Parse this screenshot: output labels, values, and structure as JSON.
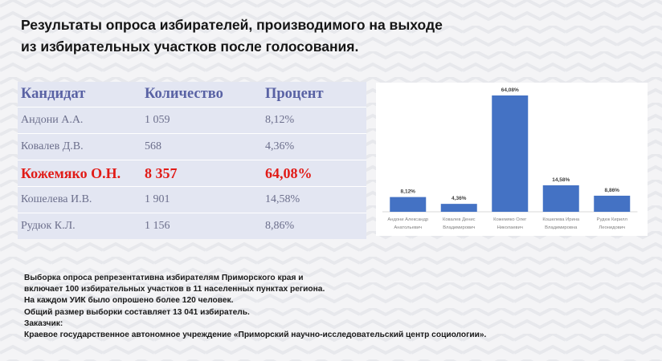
{
  "title_line1": "Результаты опроса избирателей, производимого на выходе",
  "title_line2": "из избирательных участков после голосования.",
  "table": {
    "headers": [
      "Кандидат",
      "Количество",
      "Процент"
    ],
    "rows": [
      {
        "name": "Андони А.А.",
        "count": "1 059",
        "percent": "8,12%"
      },
      {
        "name": "Ковалев Д.В.",
        "count": "568",
        "percent": "4,36%"
      },
      {
        "name": "Кожемяко О.Н.",
        "count": "8 357",
        "percent": "64,08%"
      },
      {
        "name": "Кошелева И.В.",
        "count": "1 901",
        "percent": "14,58%"
      },
      {
        "name": "Рудюк К.Л.",
        "count": "1 156",
        "percent": "8,86%"
      }
    ]
  },
  "chart_data": {
    "type": "bar",
    "categories": [
      [
        "Андони Александр",
        "Анатольевич"
      ],
      [
        "Ковалев Денис",
        "Владимирович"
      ],
      [
        "Кожемяко Олег",
        "Николаевич"
      ],
      [
        "Кошелева Ирина",
        "Владимировна"
      ],
      [
        "Рудюк Кирилл",
        "Леонидович"
      ]
    ],
    "values": [
      8.12,
      4.36,
      64.08,
      14.58,
      8.86
    ],
    "data_labels": [
      "8,12%",
      "4,36%",
      "64,08%",
      "14,58%",
      "8,86%"
    ],
    "ylim": [
      0,
      70
    ],
    "grid": false,
    "bar_color": "#4472c4"
  },
  "colors": {
    "highlight": "#e11b17",
    "header": "#5962a4"
  },
  "footer": [
    "Выборка опроса репрезентативна избирателям Приморского края и",
    "включает 100 избирательных участков в 11 населенных пунктах региона.",
    "На каждом УИК было опрошено более 120 человек.",
    "Общий размер выборки составляет 13 041 избиратель.",
    "Заказчик:",
    "Краевое государственное автономное учреждение «Приморский научно-исследовательский центр социологии»."
  ]
}
